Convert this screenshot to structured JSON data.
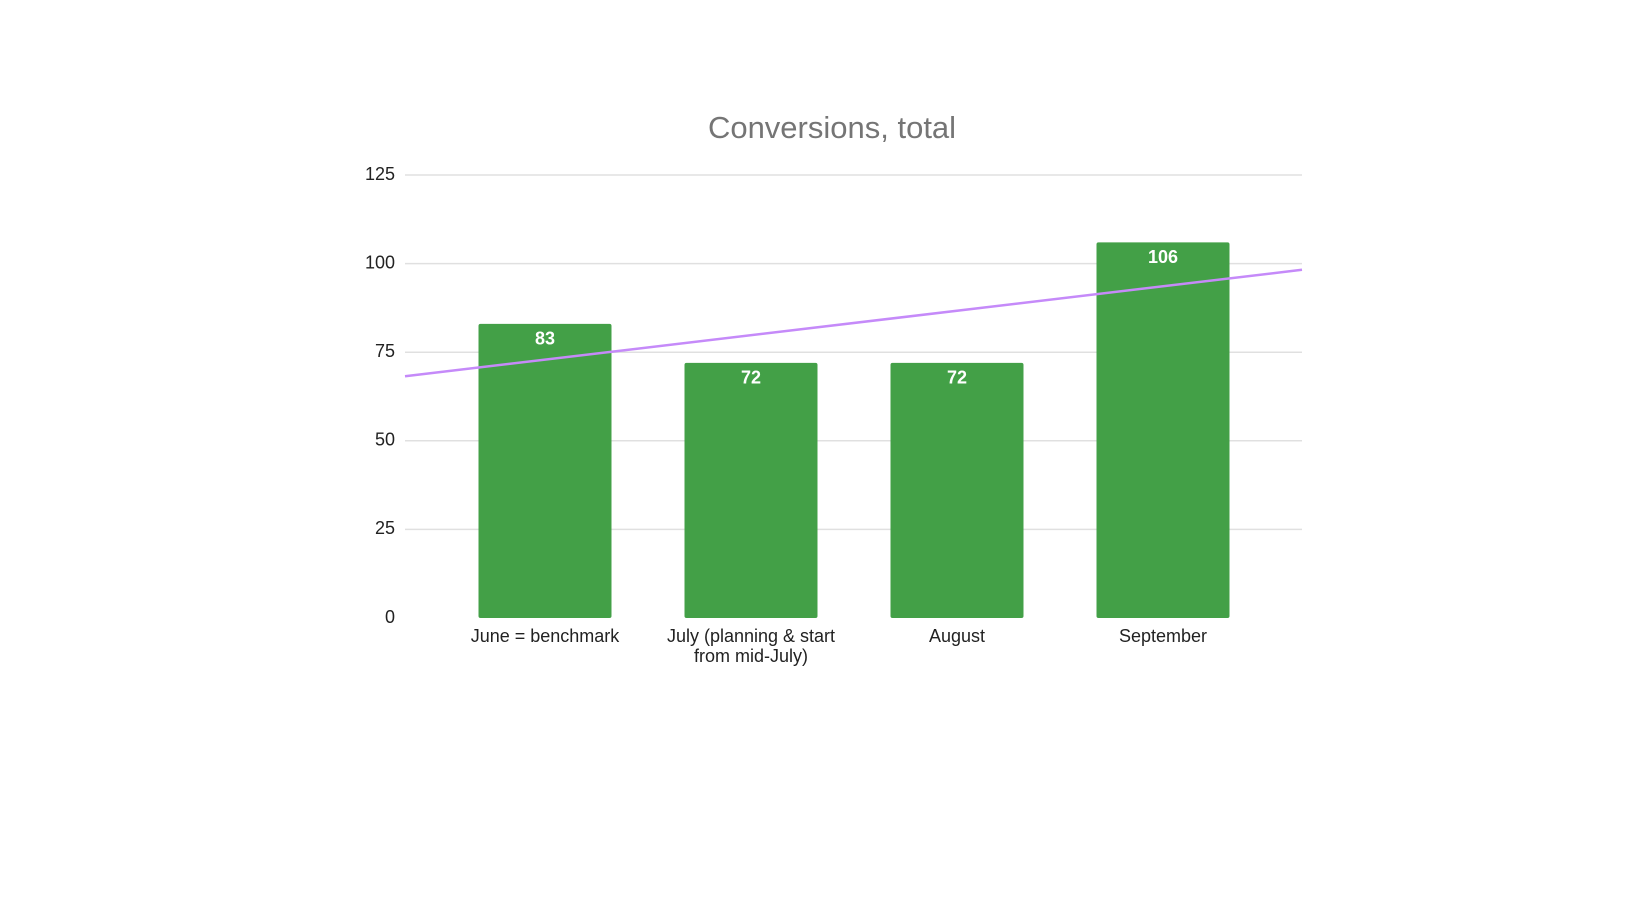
{
  "chart_data": {
    "type": "bar",
    "title": "Conversions, total",
    "categories": [
      "June = benchmark",
      "July (planning & start from mid-July)",
      "August",
      "September"
    ],
    "values": [
      83,
      72,
      72,
      106
    ],
    "color": "#43a047",
    "ylim": [
      0,
      125
    ],
    "yticks": [
      0,
      25,
      50,
      75,
      100,
      125
    ],
    "grid": true,
    "trendline": {
      "type": "linear",
      "color": "#c58af9"
    }
  }
}
